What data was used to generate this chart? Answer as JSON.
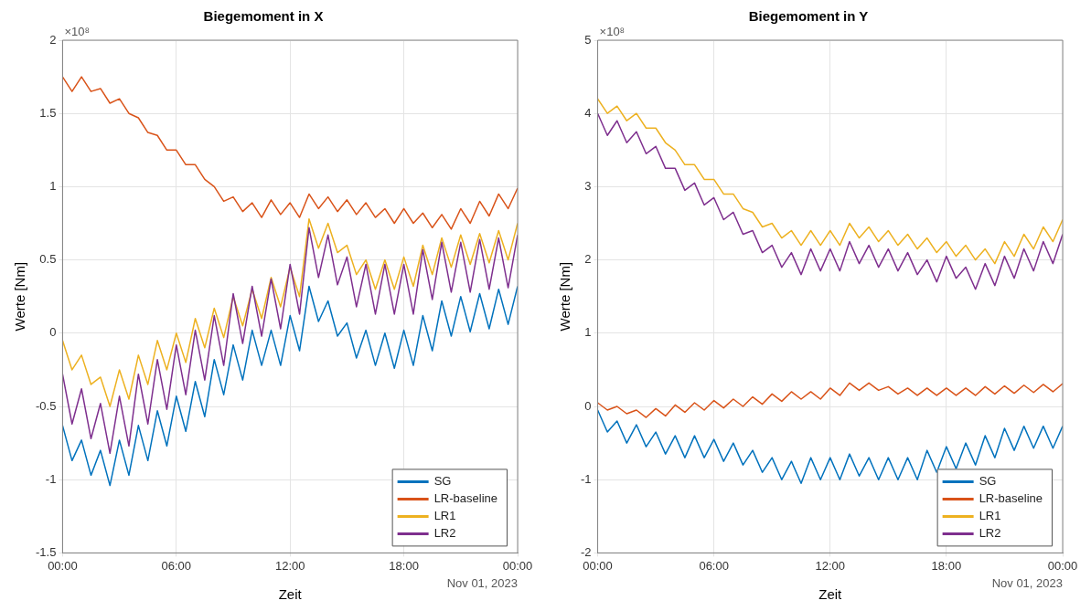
{
  "chart_data": [
    {
      "type": "line",
      "title": "Biegemoment in X",
      "xlabel": "Zeit",
      "ylabel": "Werte [Nm]",
      "annotations": [
        "×10⁸",
        "Nov 01, 2023"
      ],
      "x": [
        0,
        0.5,
        1,
        1.5,
        2,
        2.5,
        3,
        3.5,
        4,
        4.5,
        5,
        5.5,
        6,
        6.5,
        7,
        7.5,
        8,
        8.5,
        9,
        9.5,
        10,
        10.5,
        11,
        11.5,
        12,
        12.5,
        13,
        13.5,
        14,
        14.5,
        15,
        15.5,
        16,
        16.5,
        17,
        17.5,
        18,
        18.5,
        19,
        19.5,
        20,
        20.5,
        21,
        21.5,
        22,
        22.5,
        23,
        23.5,
        24
      ],
      "xlim": [
        0,
        24
      ],
      "xticks": [
        {
          "value": 0,
          "label": "00:00"
        },
        {
          "value": 6,
          "label": "06:00"
        },
        {
          "value": 12,
          "label": "12:00"
        },
        {
          "value": 18,
          "label": "18:00"
        },
        {
          "value": 24,
          "label": "00:00"
        }
      ],
      "ylim": [
        -1.5,
        2
      ],
      "yticks": [
        -1.5,
        -1,
        -0.5,
        0,
        0.5,
        1,
        1.5,
        2
      ],
      "grid": true,
      "legend": "bottom right",
      "series": [
        {
          "name": "SG",
          "color": "#0072bd",
          "values": [
            -0.63,
            -0.87,
            -0.73,
            -0.97,
            -0.8,
            -1.04,
            -0.73,
            -0.97,
            -0.63,
            -0.87,
            -0.53,
            -0.77,
            -0.43,
            -0.67,
            -0.33,
            -0.57,
            -0.18,
            -0.42,
            -0.08,
            -0.32,
            0.02,
            -0.22,
            0.02,
            -0.22,
            0.12,
            -0.12,
            0.32,
            0.08,
            0.22,
            -0.02,
            0.07,
            -0.17,
            0.02,
            -0.22,
            0,
            -0.24,
            0.02,
            -0.22,
            0.12,
            -0.12,
            0.22,
            -0.02,
            0.25,
            0.01,
            0.27,
            0.03,
            0.3,
            0.06,
            0.32
          ]
        },
        {
          "name": "LR-baseline",
          "color": "#d95319",
          "values": [
            1.75,
            1.65,
            1.75,
            1.65,
            1.67,
            1.57,
            1.6,
            1.5,
            1.47,
            1.37,
            1.35,
            1.25,
            1.25,
            1.15,
            1.15,
            1.05,
            1,
            0.9,
            0.93,
            0.83,
            0.89,
            0.79,
            0.91,
            0.81,
            0.89,
            0.79,
            0.95,
            0.85,
            0.93,
            0.83,
            0.91,
            0.81,
            0.89,
            0.79,
            0.85,
            0.75,
            0.85,
            0.75,
            0.82,
            0.72,
            0.81,
            0.71,
            0.85,
            0.75,
            0.9,
            0.8,
            0.95,
            0.85,
            0.99
          ]
        },
        {
          "name": "LR1",
          "color": "#edb120",
          "values": [
            -0.05,
            -0.25,
            -0.15,
            -0.35,
            -0.3,
            -0.5,
            -0.25,
            -0.45,
            -0.15,
            -0.35,
            -0.05,
            -0.25,
            0,
            -0.2,
            0.1,
            -0.1,
            0.17,
            -0.03,
            0.25,
            0.05,
            0.3,
            0.1,
            0.38,
            0.18,
            0.45,
            0.25,
            0.78,
            0.58,
            0.75,
            0.55,
            0.6,
            0.4,
            0.5,
            0.3,
            0.5,
            0.3,
            0.52,
            0.32,
            0.6,
            0.4,
            0.65,
            0.45,
            0.67,
            0.47,
            0.68,
            0.48,
            0.7,
            0.5,
            0.75
          ]
        },
        {
          "name": "LR2",
          "color": "#7e2f8e",
          "values": [
            -0.28,
            -0.62,
            -0.38,
            -0.72,
            -0.48,
            -0.82,
            -0.43,
            -0.77,
            -0.28,
            -0.62,
            -0.18,
            -0.52,
            -0.08,
            -0.42,
            0.02,
            -0.32,
            0.12,
            -0.22,
            0.27,
            -0.07,
            0.32,
            -0.02,
            0.37,
            0.03,
            0.47,
            0.13,
            0.72,
            0.38,
            0.67,
            0.33,
            0.52,
            0.18,
            0.47,
            0.13,
            0.47,
            0.13,
            0.47,
            0.13,
            0.57,
            0.23,
            0.62,
            0.28,
            0.62,
            0.28,
            0.64,
            0.3,
            0.65,
            0.31,
            0.67
          ]
        }
      ]
    },
    {
      "type": "line",
      "title": "Biegemoment in Y",
      "xlabel": "Zeit",
      "ylabel": "Werte [Nm]",
      "annotations": [
        "×10⁸",
        "Nov 01, 2023"
      ],
      "x": [
        0,
        0.5,
        1,
        1.5,
        2,
        2.5,
        3,
        3.5,
        4,
        4.5,
        5,
        5.5,
        6,
        6.5,
        7,
        7.5,
        8,
        8.5,
        9,
        9.5,
        10,
        10.5,
        11,
        11.5,
        12,
        12.5,
        13,
        13.5,
        14,
        14.5,
        15,
        15.5,
        16,
        16.5,
        17,
        17.5,
        18,
        18.5,
        19,
        19.5,
        20,
        20.5,
        21,
        21.5,
        22,
        22.5,
        23,
        23.5,
        24
      ],
      "xlim": [
        0,
        24
      ],
      "xticks": [
        {
          "value": 0,
          "label": "00:00"
        },
        {
          "value": 6,
          "label": "06:00"
        },
        {
          "value": 12,
          "label": "12:00"
        },
        {
          "value": 18,
          "label": "18:00"
        },
        {
          "value": 24,
          "label": "00:00"
        }
      ],
      "ylim": [
        -2,
        5
      ],
      "yticks": [
        -2,
        -1,
        0,
        1,
        2,
        3,
        4,
        5
      ],
      "grid": true,
      "legend": "bottom right",
      "series": [
        {
          "name": "SG",
          "color": "#0072bd",
          "values": [
            -0.05,
            -0.35,
            -0.2,
            -0.5,
            -0.25,
            -0.55,
            -0.35,
            -0.65,
            -0.4,
            -0.7,
            -0.4,
            -0.7,
            -0.45,
            -0.75,
            -0.5,
            -0.8,
            -0.6,
            -0.9,
            -0.7,
            -1,
            -0.75,
            -1.05,
            -0.7,
            -1,
            -0.7,
            -1,
            -0.65,
            -0.95,
            -0.7,
            -1,
            -0.7,
            -1,
            -0.7,
            -1,
            -0.6,
            -0.9,
            -0.55,
            -0.85,
            -0.5,
            -0.8,
            -0.4,
            -0.7,
            -0.3,
            -0.6,
            -0.27,
            -0.57,
            -0.27,
            -0.57,
            -0.27
          ]
        },
        {
          "name": "LR-baseline",
          "color": "#d95319",
          "values": [
            0.05,
            -0.05,
            0,
            -0.1,
            -0.05,
            -0.15,
            -0.03,
            -0.13,
            0.02,
            -0.08,
            0.05,
            -0.05,
            0.08,
            -0.02,
            0.1,
            0,
            0.13,
            0.03,
            0.17,
            0.07,
            0.2,
            0.1,
            0.2,
            0.1,
            0.25,
            0.15,
            0.32,
            0.22,
            0.32,
            0.22,
            0.27,
            0.17,
            0.25,
            0.15,
            0.25,
            0.15,
            0.25,
            0.15,
            0.25,
            0.15,
            0.27,
            0.17,
            0.28,
            0.18,
            0.29,
            0.19,
            0.3,
            0.2,
            0.31
          ]
        },
        {
          "name": "LR1",
          "color": "#edb120",
          "values": [
            4.2,
            4,
            4.1,
            3.9,
            4,
            3.8,
            3.8,
            3.6,
            3.5,
            3.3,
            3.3,
            3.1,
            3.1,
            2.9,
            2.9,
            2.7,
            2.65,
            2.45,
            2.5,
            2.3,
            2.4,
            2.2,
            2.4,
            2.2,
            2.4,
            2.2,
            2.5,
            2.3,
            2.45,
            2.25,
            2.4,
            2.2,
            2.35,
            2.15,
            2.3,
            2.1,
            2.25,
            2.05,
            2.2,
            2,
            2.15,
            1.95,
            2.25,
            2.05,
            2.35,
            2.15,
            2.45,
            2.25,
            2.55
          ]
        },
        {
          "name": "LR2",
          "color": "#7e2f8e",
          "values": [
            4,
            3.7,
            3.9,
            3.6,
            3.75,
            3.45,
            3.55,
            3.25,
            3.25,
            2.95,
            3.05,
            2.75,
            2.85,
            2.55,
            2.65,
            2.35,
            2.4,
            2.1,
            2.2,
            1.9,
            2.1,
            1.8,
            2.15,
            1.85,
            2.15,
            1.85,
            2.25,
            1.95,
            2.2,
            1.9,
            2.15,
            1.85,
            2.1,
            1.8,
            2,
            1.7,
            2.05,
            1.75,
            1.9,
            1.6,
            1.95,
            1.65,
            2.05,
            1.75,
            2.15,
            1.85,
            2.25,
            1.95,
            2.35
          ]
        }
      ]
    }
  ]
}
